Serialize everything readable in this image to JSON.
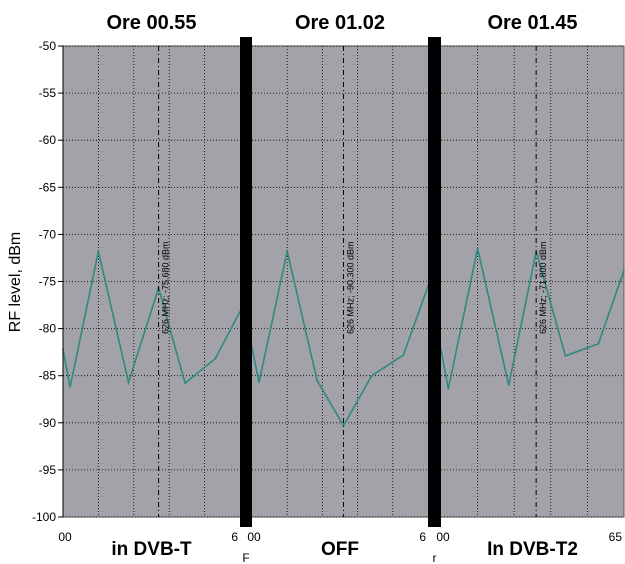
{
  "chart_data": {
    "type": "line",
    "ylabel": "RF level, dBm",
    "ylim": [
      -100,
      -50
    ],
    "yticks": [
      -50,
      -55,
      -60,
      -65,
      -70,
      -75,
      -80,
      -85,
      -90,
      -95,
      -100
    ],
    "grid": true,
    "colors": {
      "plot_bg": "#a3a2a8",
      "line": "#2f8a80",
      "divider": "#000000",
      "grid": "#000000"
    },
    "panels": [
      {
        "title": "Ore 00.55",
        "bottom_label": "in DVB-T",
        "x_tick_left": "00",
        "x_tick_right": "6",
        "marker_label": "626 MHz; -75.680 dBm",
        "marker_pos": 0.54,
        "x": [
          0,
          0.04,
          0.2,
          0.37,
          0.54,
          0.69,
          0.86,
          1.0
        ],
        "y": [
          -82.2,
          -86.2,
          -71.8,
          -85.7,
          -75.7,
          -85.8,
          -83.2,
          -78.2
        ]
      },
      {
        "title": "Ore 01.02",
        "bottom_label": "OFF",
        "x_tick_left": "00",
        "x_tick_right": "6",
        "marker_label": "626 MHz; -90.300 dBm",
        "marker_pos": 0.52,
        "x": [
          0,
          0.04,
          0.2,
          0.37,
          0.52,
          0.68,
          0.86,
          1.0
        ],
        "y": [
          -82.0,
          -85.7,
          -71.8,
          -85.5,
          -90.3,
          -85.0,
          -82.8,
          -75.5
        ]
      },
      {
        "title": "Ore 01.45",
        "bottom_label": "In DVB-T2",
        "x_tick_left": "00",
        "x_tick_right": "65",
        "marker_label": "626 MHz; -71.800 dBm",
        "marker_pos": 0.52,
        "x": [
          0,
          0.04,
          0.2,
          0.37,
          0.52,
          0.68,
          0.86,
          1.0
        ],
        "y": [
          -82.2,
          -86.4,
          -71.5,
          -86.0,
          -71.8,
          -82.9,
          -81.6,
          -73.8
        ]
      }
    ],
    "divider_notes": [
      "F",
      "r"
    ]
  }
}
